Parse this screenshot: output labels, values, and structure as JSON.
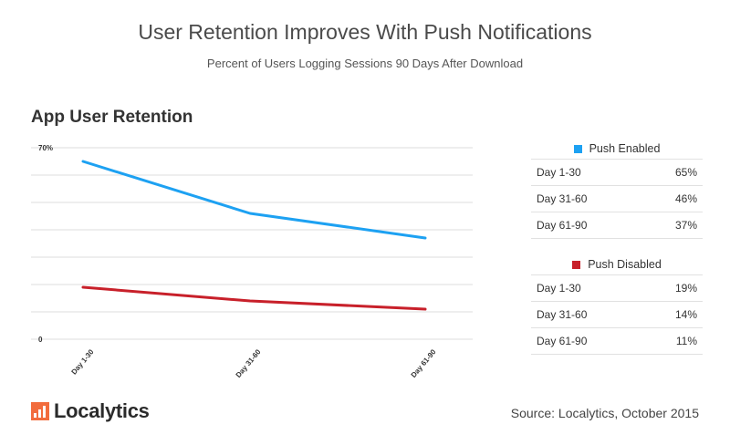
{
  "header": {
    "title": "User Retention Improves With Push Notifications",
    "subtitle": "Percent of Users Logging Sessions 90 Days After Download"
  },
  "chart_heading": "App User Retention",
  "chart_data": {
    "type": "line",
    "title": "App User Retention",
    "categories": [
      "Day 1-30",
      "Day 31-60",
      "Day 61-90"
    ],
    "ylim": [
      0,
      70
    ],
    "y_tick_labels": [
      "0",
      "70%"
    ],
    "grid": true,
    "series": [
      {
        "name": "Push Enabled",
        "color": "#1da1f2",
        "values": [
          65,
          46,
          37
        ]
      },
      {
        "name": "Push Disabled",
        "color": "#c8202a",
        "values": [
          19,
          14,
          11
        ]
      }
    ]
  },
  "legend": {
    "enabled": {
      "label": "Push Enabled",
      "color": "#1da1f2",
      "rows": [
        {
          "period": "Day 1-30",
          "value": "65%"
        },
        {
          "period": "Day 31-60",
          "value": "46%"
        },
        {
          "period": "Day 61-90",
          "value": "37%"
        }
      ]
    },
    "disabled": {
      "label": "Push Disabled",
      "color": "#c8202a",
      "rows": [
        {
          "period": "Day 1-30",
          "value": "19%"
        },
        {
          "period": "Day 31-60",
          "value": "14%"
        },
        {
          "period": "Day 61-90",
          "value": "11%"
        }
      ]
    }
  },
  "footer": {
    "brand": "Localytics",
    "source": "Source: Localytics, October 2015"
  }
}
